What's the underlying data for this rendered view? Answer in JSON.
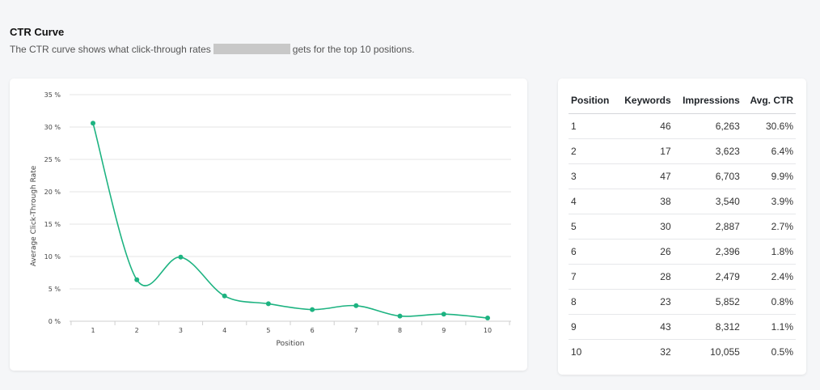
{
  "header": {
    "title": "CTR Curve",
    "desc_before": "The CTR curve shows what click-through rates",
    "desc_after": "gets for the top 10 positions."
  },
  "colors": {
    "line": "#1db381",
    "grid": "#e6e6e6"
  },
  "chart_data": {
    "type": "line",
    "xlabel": "Position",
    "ylabel": "Average Click-Through Rate",
    "x": [
      1,
      2,
      3,
      4,
      5,
      6,
      7,
      8,
      9,
      10
    ],
    "values": [
      30.6,
      6.4,
      9.9,
      3.9,
      2.7,
      1.8,
      2.4,
      0.8,
      1.1,
      0.5
    ],
    "ylim": [
      0,
      35
    ],
    "yticks": [
      0,
      5,
      10,
      15,
      20,
      25,
      30,
      35
    ],
    "ytick_labels": [
      "0 %",
      "5 %",
      "10 %",
      "15 %",
      "20 %",
      "25 %",
      "30 %",
      "35 %"
    ],
    "grid": true,
    "legend": "none"
  },
  "table": {
    "headers": [
      "Position",
      "Keywords",
      "Impressions",
      "Avg. CTR"
    ],
    "rows": [
      [
        "1",
        "46",
        "6,263",
        "30.6%"
      ],
      [
        "2",
        "17",
        "3,623",
        "6.4%"
      ],
      [
        "3",
        "47",
        "6,703",
        "9.9%"
      ],
      [
        "4",
        "38",
        "3,540",
        "3.9%"
      ],
      [
        "5",
        "30",
        "2,887",
        "2.7%"
      ],
      [
        "6",
        "26",
        "2,396",
        "1.8%"
      ],
      [
        "7",
        "28",
        "2,479",
        "2.4%"
      ],
      [
        "8",
        "23",
        "5,852",
        "0.8%"
      ],
      [
        "9",
        "43",
        "8,312",
        "1.1%"
      ],
      [
        "10",
        "32",
        "10,055",
        "0.5%"
      ]
    ]
  }
}
